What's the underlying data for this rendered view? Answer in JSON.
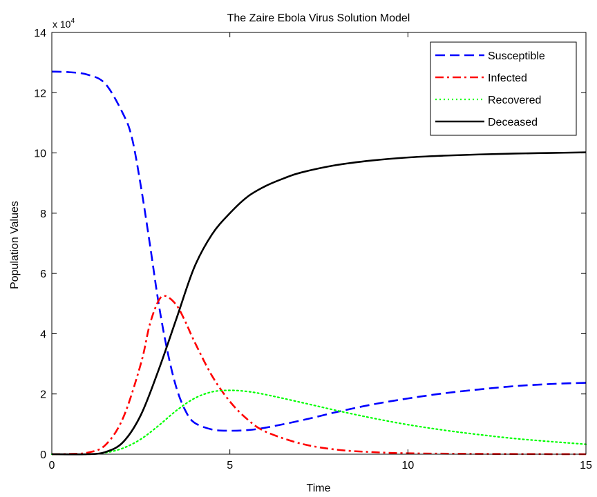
{
  "chart_data": {
    "type": "line",
    "title": "The Zaire Ebola Virus Solution Model",
    "xlabel": "Time",
    "ylabel": "Population Values",
    "y_exponent_label": "x 10",
    "y_exponent_power": "4",
    "xlim": [
      0,
      15
    ],
    "ylim": [
      0,
      14
    ],
    "xticks": [
      0,
      5,
      10,
      15
    ],
    "yticks": [
      0,
      2,
      4,
      6,
      8,
      10,
      12,
      14
    ],
    "grid": false,
    "legend_position": "top-right",
    "series": [
      {
        "name": "Susceptible",
        "color": "#0000ff",
        "style": "dashed",
        "points": [
          [
            0,
            12.7
          ],
          [
            0.5,
            12.68
          ],
          [
            1,
            12.6
          ],
          [
            1.5,
            12.3
          ],
          [
            2,
            11.3
          ],
          [
            2.25,
            10.5
          ],
          [
            2.5,
            8.9
          ],
          [
            2.75,
            7.0
          ],
          [
            3,
            5.0
          ],
          [
            3.25,
            3.4
          ],
          [
            3.5,
            2.2
          ],
          [
            3.75,
            1.45
          ],
          [
            4,
            1.05
          ],
          [
            4.5,
            0.82
          ],
          [
            5,
            0.78
          ],
          [
            5.5,
            0.8
          ],
          [
            6,
            0.88
          ],
          [
            7,
            1.12
          ],
          [
            8,
            1.4
          ],
          [
            9,
            1.65
          ],
          [
            10,
            1.85
          ],
          [
            11,
            2.02
          ],
          [
            12,
            2.15
          ],
          [
            13,
            2.26
          ],
          [
            14,
            2.33
          ],
          [
            15,
            2.37
          ]
        ]
      },
      {
        "name": "Infected",
        "color": "#ff0000",
        "style": "dashdot",
        "points": [
          [
            0,
            0
          ],
          [
            0.5,
            0.01
          ],
          [
            1,
            0.05
          ],
          [
            1.5,
            0.3
          ],
          [
            2,
            1.2
          ],
          [
            2.5,
            3.0
          ],
          [
            2.75,
            4.3
          ],
          [
            3,
            5.1
          ],
          [
            3.2,
            5.25
          ],
          [
            3.5,
            4.95
          ],
          [
            3.75,
            4.4
          ],
          [
            4,
            3.75
          ],
          [
            4.5,
            2.6
          ],
          [
            5,
            1.75
          ],
          [
            5.5,
            1.15
          ],
          [
            6,
            0.75
          ],
          [
            7,
            0.35
          ],
          [
            8,
            0.15
          ],
          [
            9,
            0.07
          ],
          [
            10,
            0.03
          ],
          [
            12,
            0.01
          ],
          [
            15,
            0
          ]
        ]
      },
      {
        "name": "Recovered",
        "color": "#00ff00",
        "style": "dotted",
        "points": [
          [
            0,
            0
          ],
          [
            1,
            0.0
          ],
          [
            1.5,
            0.05
          ],
          [
            2,
            0.2
          ],
          [
            2.5,
            0.5
          ],
          [
            3,
            0.95
          ],
          [
            3.5,
            1.45
          ],
          [
            4,
            1.85
          ],
          [
            4.5,
            2.07
          ],
          [
            5,
            2.12
          ],
          [
            5.5,
            2.08
          ],
          [
            6,
            1.98
          ],
          [
            7,
            1.72
          ],
          [
            8,
            1.45
          ],
          [
            9,
            1.2
          ],
          [
            10,
            0.98
          ],
          [
            11,
            0.8
          ],
          [
            12,
            0.65
          ],
          [
            13,
            0.52
          ],
          [
            14,
            0.42
          ],
          [
            15,
            0.33
          ]
        ]
      },
      {
        "name": "Deceased",
        "color": "#000000",
        "style": "solid",
        "points": [
          [
            0,
            0
          ],
          [
            1,
            0.0
          ],
          [
            1.5,
            0.07
          ],
          [
            2,
            0.4
          ],
          [
            2.5,
            1.3
          ],
          [
            3,
            2.8
          ],
          [
            3.5,
            4.5
          ],
          [
            4,
            6.2
          ],
          [
            4.5,
            7.3
          ],
          [
            5,
            8.0
          ],
          [
            5.5,
            8.55
          ],
          [
            6,
            8.9
          ],
          [
            6.5,
            9.15
          ],
          [
            7,
            9.35
          ],
          [
            8,
            9.6
          ],
          [
            9,
            9.75
          ],
          [
            10,
            9.85
          ],
          [
            11,
            9.91
          ],
          [
            12,
            9.95
          ],
          [
            13,
            9.98
          ],
          [
            14,
            10.0
          ],
          [
            15,
            10.02
          ]
        ]
      }
    ]
  }
}
